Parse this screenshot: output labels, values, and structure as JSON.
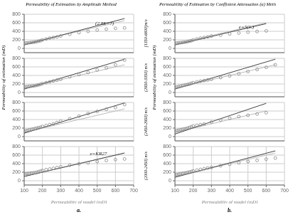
{
  "column_titles": [
    "Permeability of Estimation by Amplitude Method",
    "Permeability of Estimation by Coeffisient Attenuation (α) Meth"
  ],
  "row_labels": [
    "[1350-6800]m/s",
    "(2950-3350) m/s",
    "(2450-2950) m/s",
    "(2000-2450) m/s"
  ],
  "panel_labels": [
    "a.",
    "b."
  ],
  "chart_data": [
    {
      "type": "scatter",
      "xlim": [
        100,
        700
      ],
      "ylim": [
        -100,
        800
      ],
      "xticks": [
        100,
        200,
        300,
        400,
        500,
        600,
        700
      ],
      "yticks": [
        0,
        200,
        400,
        600,
        800
      ],
      "grid": true,
      "tick_labels": "y",
      "annotations": [
        {
          "text": "(2.8E+7)",
          "x": 490,
          "y": 590
        }
      ],
      "series": [
        {
          "type": "line",
          "color": "#bbbbbb",
          "x": [
            100,
            650
          ],
          "values": [
            100,
            650
          ]
        },
        {
          "type": "line",
          "color": "#444444",
          "x": [
            100,
            650
          ],
          "values": [
            80,
            700
          ]
        },
        {
          "type": "scatter",
          "color": "#888888",
          "marker": "circle",
          "x": [
            100,
            110,
            120,
            130,
            140,
            150,
            160,
            170,
            180,
            190,
            200,
            220,
            240,
            260,
            280,
            300,
            350,
            400,
            450,
            500,
            550,
            600,
            650
          ],
          "values": [
            120,
            125,
            130,
            135,
            140,
            145,
            150,
            160,
            170,
            180,
            200,
            220,
            240,
            255,
            270,
            290,
            330,
            370,
            400,
            430,
            450,
            470,
            480
          ]
        }
      ]
    },
    {
      "type": "scatter",
      "xlim": [
        100,
        700
      ],
      "ylim": [
        -100,
        800
      ],
      "xticks": [
        100,
        200,
        300,
        400,
        500,
        600,
        700
      ],
      "yticks": [
        0,
        200,
        400,
        600,
        800
      ],
      "grid": true,
      "tick_labels": "y",
      "y_label": "Permeability of estimation (mD)",
      "series": [
        {
          "type": "line",
          "color": "#bbbbbb",
          "x": [
            100,
            650
          ],
          "values": [
            100,
            650
          ]
        },
        {
          "type": "line",
          "color": "#444444",
          "x": [
            100,
            650
          ],
          "values": [
            80,
            780
          ]
        },
        {
          "type": "scatter",
          "color": "#888888",
          "marker": "circle",
          "x": [
            100,
            110,
            120,
            130,
            140,
            150,
            160,
            170,
            180,
            190,
            200,
            220,
            240,
            260,
            280,
            300,
            350,
            400,
            450,
            500,
            550,
            600,
            650
          ],
          "values": [
            130,
            135,
            140,
            145,
            150,
            155,
            160,
            170,
            180,
            190,
            210,
            230,
            250,
            270,
            290,
            310,
            370,
            420,
            470,
            530,
            580,
            650,
            760
          ]
        }
      ]
    },
    {
      "type": "scatter",
      "xlim": [
        100,
        700
      ],
      "ylim": [
        -100,
        800
      ],
      "xticks": [
        100,
        200,
        300,
        400,
        500,
        600,
        700
      ],
      "yticks": [
        0,
        200,
        400,
        600,
        800
      ],
      "grid": true,
      "tick_labels": "y",
      "series": [
        {
          "type": "line",
          "color": "#bbbbbb",
          "x": [
            100,
            650
          ],
          "values": [
            100,
            650
          ]
        },
        {
          "type": "line",
          "color": "#444444",
          "x": [
            100,
            650
          ],
          "values": [
            80,
            790
          ]
        },
        {
          "type": "scatter",
          "color": "#888888",
          "marker": "circle",
          "x": [
            100,
            110,
            120,
            130,
            140,
            150,
            160,
            170,
            180,
            190,
            200,
            220,
            240,
            260,
            280,
            300,
            350,
            400,
            450,
            500,
            550,
            600,
            650
          ],
          "values": [
            130,
            140,
            150,
            160,
            170,
            180,
            190,
            200,
            210,
            220,
            240,
            260,
            280,
            300,
            330,
            360,
            420,
            480,
            540,
            590,
            640,
            680,
            750
          ]
        }
      ]
    },
    {
      "type": "scatter",
      "xlim": [
        100,
        700
      ],
      "ylim": [
        -100,
        800
      ],
      "xticks": [
        100,
        200,
        300,
        400,
        500,
        600,
        700
      ],
      "yticks": [
        0,
        200,
        400,
        600,
        800
      ],
      "grid": true,
      "x_label": "Permeability of model (mD)",
      "annotations": [
        {
          "text": "e=KR27",
          "x": 460,
          "y": 640
        }
      ],
      "series": [
        {
          "type": "line",
          "color": "#bbbbbb",
          "x": [
            100,
            650
          ],
          "values": [
            100,
            650
          ]
        },
        {
          "type": "line",
          "color": "#444444",
          "x": [
            100,
            650
          ],
          "values": [
            100,
            650
          ]
        },
        {
          "type": "scatter",
          "color": "#888888",
          "marker": "circle",
          "x": [
            100,
            110,
            120,
            130,
            140,
            150,
            160,
            170,
            180,
            190,
            200,
            220,
            240,
            260,
            280,
            300,
            350,
            400,
            450,
            500,
            550,
            600,
            650
          ],
          "values": [
            160,
            165,
            170,
            175,
            180,
            185,
            190,
            200,
            215,
            225,
            240,
            260,
            275,
            290,
            310,
            325,
            365,
            395,
            420,
            450,
            475,
            495,
            510
          ]
        }
      ]
    },
    {
      "type": "scatter",
      "xlim": [
        100,
        700
      ],
      "ylim": [
        -100,
        800
      ],
      "xticks": [
        100,
        200,
        300,
        400,
        500,
        600,
        700
      ],
      "yticks": [
        0,
        200,
        400,
        600,
        800
      ],
      "grid": true,
      "tick_labels": "y",
      "annotations": [
        {
          "text": "e=5(1.)",
          "x": 450,
          "y": 510
        }
      ],
      "series": [
        {
          "type": "line",
          "color": "#bbbbbb",
          "x": [
            100,
            600
          ],
          "values": [
            100,
            600
          ]
        },
        {
          "type": "line",
          "color": "#444444",
          "x": [
            100,
            600
          ],
          "values": [
            80,
            580
          ]
        },
        {
          "type": "scatter",
          "color": "#888888",
          "marker": "circle",
          "x": [
            100,
            110,
            120,
            130,
            140,
            150,
            160,
            170,
            180,
            190,
            200,
            220,
            240,
            260,
            280,
            300,
            350,
            400,
            450,
            500,
            550,
            600
          ],
          "values": [
            120,
            125,
            130,
            135,
            140,
            145,
            150,
            160,
            170,
            180,
            200,
            220,
            240,
            255,
            270,
            290,
            310,
            340,
            360,
            380,
            395,
            410
          ]
        }
      ]
    },
    {
      "type": "scatter",
      "xlim": [
        100,
        700
      ],
      "ylim": [
        -100,
        800
      ],
      "xticks": [
        100,
        200,
        300,
        400,
        500,
        600,
        700
      ],
      "yticks": [
        0,
        200,
        400,
        600,
        800
      ],
      "grid": true,
      "tick_labels": "y",
      "y_label": "Permeability of estimation (mD)",
      "series": [
        {
          "type": "line",
          "color": "#bbbbbb",
          "x": [
            100,
            650
          ],
          "values": [
            100,
            650
          ]
        },
        {
          "type": "line",
          "color": "#444444",
          "x": [
            100,
            650
          ],
          "values": [
            80,
            780
          ]
        },
        {
          "type": "scatter",
          "color": "#888888",
          "marker": "circle",
          "x": [
            100,
            110,
            120,
            130,
            140,
            150,
            160,
            170,
            180,
            190,
            200,
            220,
            240,
            260,
            280,
            300,
            350,
            400,
            450,
            500,
            550,
            600,
            650
          ],
          "values": [
            120,
            130,
            140,
            150,
            160,
            170,
            180,
            190,
            200,
            215,
            230,
            250,
            265,
            280,
            295,
            310,
            350,
            390,
            440,
            490,
            540,
            590,
            650
          ]
        }
      ]
    },
    {
      "type": "scatter",
      "xlim": [
        100,
        700
      ],
      "ylim": [
        -100,
        800
      ],
      "xticks": [
        100,
        200,
        300,
        400,
        500,
        600,
        700
      ],
      "yticks": [
        0,
        200,
        400,
        600,
        800
      ],
      "grid": true,
      "tick_labels": "y",
      "series": [
        {
          "type": "line",
          "color": "#bbbbbb",
          "x": [
            100,
            600
          ],
          "values": [
            100,
            600
          ]
        },
        {
          "type": "line",
          "color": "#444444",
          "x": [
            100,
            600
          ],
          "values": [
            60,
            780
          ]
        },
        {
          "type": "scatter",
          "color": "#888888",
          "marker": "circle",
          "x": [
            100,
            110,
            120,
            130,
            140,
            150,
            160,
            170,
            180,
            190,
            200,
            220,
            240,
            260,
            300,
            350,
            400,
            450,
            500,
            550,
            600
          ],
          "values": [
            130,
            140,
            150,
            160,
            170,
            180,
            190,
            200,
            215,
            230,
            250,
            265,
            280,
            295,
            340,
            390,
            430,
            470,
            500,
            530,
            560
          ]
        }
      ]
    },
    {
      "type": "scatter",
      "xlim": [
        100,
        700
      ],
      "ylim": [
        -100,
        800
      ],
      "xticks": [
        100,
        200,
        300,
        400,
        500,
        600,
        700
      ],
      "yticks": [
        0,
        200,
        400,
        600,
        800
      ],
      "grid": true,
      "x_label": "Permeability of model (mD)",
      "series": [
        {
          "type": "line",
          "color": "#bbbbbb",
          "x": [
            100,
            650
          ],
          "values": [
            100,
            650
          ]
        },
        {
          "type": "line",
          "color": "#444444",
          "x": [
            100,
            650
          ],
          "values": [
            80,
            700
          ]
        },
        {
          "type": "scatter",
          "color": "#888888",
          "marker": "circle",
          "x": [
            100,
            110,
            120,
            130,
            140,
            150,
            160,
            170,
            180,
            190,
            200,
            220,
            240,
            260,
            280,
            300,
            350,
            400,
            450,
            500,
            550,
            600,
            650
          ],
          "values": [
            140,
            148,
            155,
            163,
            170,
            178,
            185,
            195,
            205,
            215,
            228,
            248,
            265,
            282,
            298,
            312,
            350,
            385,
            420,
            450,
            478,
            505,
            530
          ]
        }
      ]
    }
  ]
}
